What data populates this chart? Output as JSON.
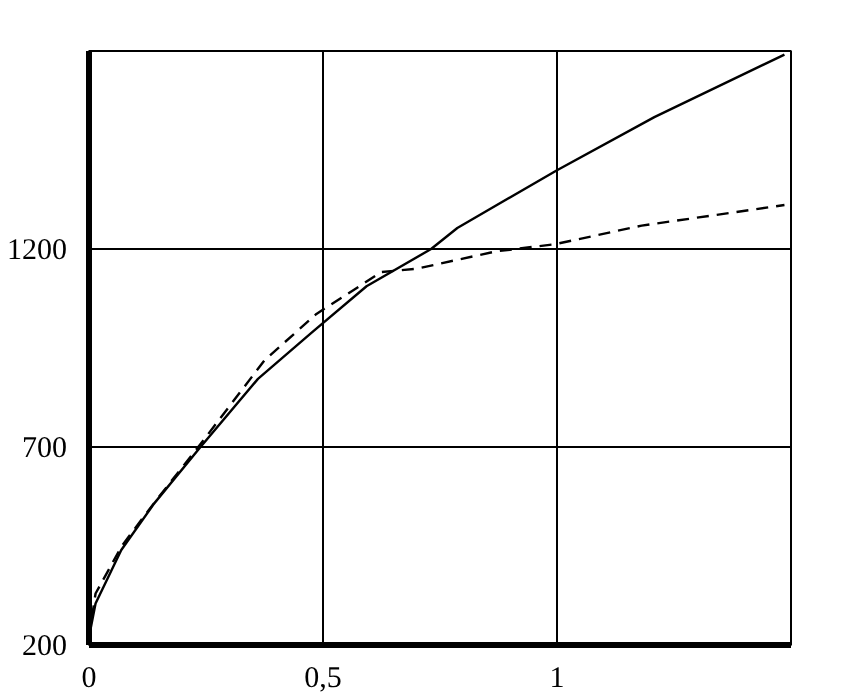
{
  "chart_data": {
    "type": "line",
    "xlim": [
      0,
      1.5
    ],
    "ylim": [
      200,
      1700
    ],
    "xticks": [
      0,
      {
        "value": 0.5,
        "label": "0,5"
      },
      1
    ],
    "yticks": [
      200,
      700,
      1200
    ],
    "grid": true,
    "marker": "none",
    "series": [
      {
        "color": "#000000",
        "line_style": "solid",
        "x": [
          0,
          0.014,
          0.069,
          0.139,
          0.236,
          0.361,
          0.477,
          0.593,
          0.731,
          0.787,
          1.0,
          1.208,
          1.486
        ],
        "values": [
          220,
          305,
          440,
          557,
          697,
          872,
          990,
          1106,
          1200,
          1253,
          1399,
          1533,
          1691
        ]
      },
      {
        "color": "#000000",
        "line_style": "dashed",
        "x": [
          0,
          0.014,
          0.07,
          0.14,
          0.24,
          0.375,
          0.486,
          0.625,
          0.699,
          0.87,
          0.995,
          1.181,
          1.486
        ],
        "values": [
          220,
          330,
          450,
          560,
          710,
          919,
          1036,
          1142,
          1150,
          1194,
          1212,
          1259,
          1311
        ]
      }
    ]
  }
}
